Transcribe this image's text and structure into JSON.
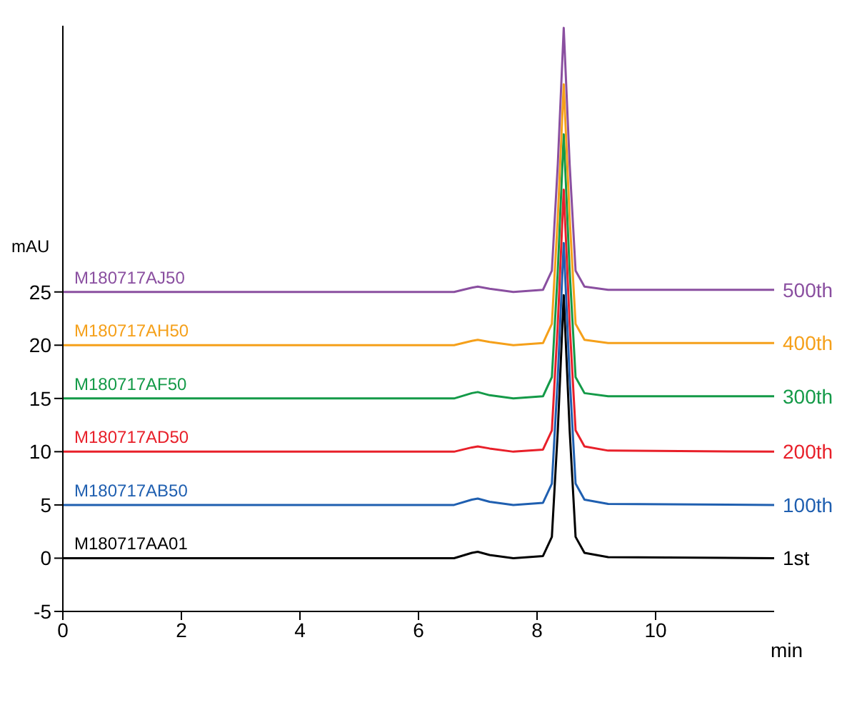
{
  "chart_data": {
    "type": "line",
    "xlabel": "min",
    "ylabel": "mAU",
    "x": [
      0,
      6.6,
      6.9,
      7.0,
      7.2,
      7.6,
      8.1,
      8.25,
      8.35,
      8.45,
      8.55,
      8.65,
      8.8,
      9.2,
      12
    ],
    "xlim": [
      0,
      12
    ],
    "xticks": [
      0,
      2,
      4,
      6,
      8,
      10
    ],
    "ylim": [
      -5,
      50
    ],
    "yticks": [
      -5,
      0,
      5,
      10,
      15,
      20,
      25
    ],
    "grid": false,
    "legend": false,
    "marker": "none",
    "line_style": "solid",
    "series": [
      {
        "name": "M180717AA01",
        "color": "#000000",
        "values": [
          0,
          0,
          0.5,
          0.6,
          0.3,
          0,
          0.2,
          2,
          12,
          24.7,
          12,
          2,
          0.5,
          0.1,
          0
        ]
      },
      {
        "name": "M180717AB50",
        "color": "#1f5fb0",
        "values": [
          5,
          5,
          5.5,
          5.6,
          5.3,
          5,
          5.2,
          7,
          17,
          29.6,
          17,
          7,
          5.5,
          5.1,
          5
        ]
      },
      {
        "name": "M180717AD50",
        "color": "#e8202a",
        "values": [
          10,
          10,
          10.4,
          10.5,
          10.3,
          10,
          10.2,
          12,
          22,
          34.6,
          22,
          12,
          10.5,
          10.1,
          10
        ]
      },
      {
        "name": "M180717AF50",
        "color": "#149a48",
        "values": [
          15,
          15,
          15.5,
          15.6,
          15.3,
          15,
          15.2,
          17,
          27,
          39.8,
          27,
          17,
          15.5,
          15.2,
          15.2
        ]
      },
      {
        "name": "M180717AH50",
        "color": "#f5a01a",
        "values": [
          20,
          20,
          20.4,
          20.5,
          20.3,
          20,
          20.2,
          22,
          32,
          44.5,
          32,
          22,
          20.5,
          20.2,
          20.2
        ]
      },
      {
        "name": "M180717AJ50",
        "color": "#8a4fa0",
        "values": [
          25,
          25,
          25.4,
          25.5,
          25.3,
          25,
          25.2,
          27,
          37,
          49.8,
          37,
          27,
          25.5,
          25.2,
          25.2
        ]
      }
    ],
    "annotations": [
      "1st",
      "100th",
      "200th",
      "300th",
      "400th",
      "500th"
    ]
  }
}
